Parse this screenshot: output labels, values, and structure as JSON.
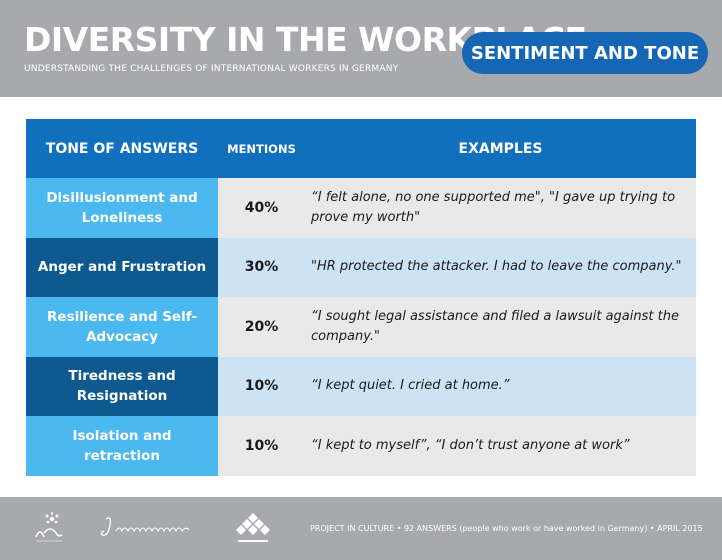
{
  "header": {
    "title": "DIVERSITY IN THE WORKPLACE",
    "subtitle": "UNDERSTANDING THE CHALLENGES OF INTERNATIONAL WORKERS IN GERMANY",
    "badge": "SENTIMENT AND TONE"
  },
  "table": {
    "columns": [
      "TONE OF ANSWERS",
      "MENTIONS",
      "EXAMPLES"
    ],
    "rows": [
      {
        "tone": "Disillusionment and Loneliness",
        "mentions": "40%",
        "example": "“I felt alone, no one supported me\", \"I gave up trying to prove my worth\""
      },
      {
        "tone": "Anger and Frustration",
        "mentions": "30%",
        "example": "\"HR protected the attacker. I had to leave the company.\""
      },
      {
        "tone": "Resilience and Self-Advocacy",
        "mentions": "20%",
        "example": "“I sought legal assistance and filed a lawsuit against the company.\""
      },
      {
        "tone": "Tiredness and Resignation",
        "mentions": "10%",
        "example": "“I kept quiet. I cried at home.”"
      },
      {
        "tone": "Isolation and retraction",
        "mentions": "10%",
        "example": "“I kept to myself”, “I don’t trust anyone at work”"
      }
    ]
  },
  "footer": {
    "logos": [
      {
        "name": "InCulture",
        "icon": "inculture-logo"
      },
      {
        "name": "Janainas",
        "icon": "janainas-logo"
      },
      {
        "name": "Stiftung Pfefferwerk",
        "icon": "diamond-grid-logo"
      }
    ],
    "text": "PROJECT IN CULTURE • 92 ANSWERS (people who work or have worked in Germany) • APRIL 2015"
  },
  "colors": {
    "header_grey": "#a7a9ac",
    "badge_blue": "#1567b6",
    "table_header_blue": "#1170bd",
    "tone_light_blue": "#4bb8f0",
    "tone_dark_blue": "#0e5a90",
    "row_grey": "#e9e9ea",
    "row_light_blue": "#cce3f6"
  }
}
